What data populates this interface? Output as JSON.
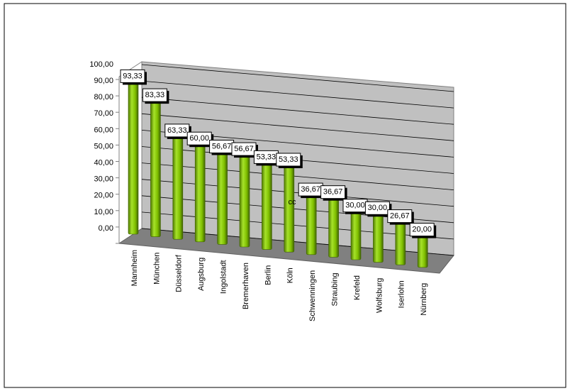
{
  "chart_data": {
    "type": "bar",
    "categories": [
      "Mannheim",
      "München",
      "Düsseldorf",
      "Augsburg",
      "Ingolstadt",
      "Bremerhaven",
      "Berlin",
      "Köln",
      "Schwenningen",
      "Straubing",
      "Krefeld",
      "Wolfsburg",
      "Iserlohn",
      "Nürnberg"
    ],
    "values": [
      93.33,
      83.33,
      63.33,
      60,
      56.67,
      56.67,
      53.33,
      53.33,
      36.67,
      36.67,
      30,
      30,
      26.67,
      20
    ],
    "value_labels": [
      "93,33",
      "83,33",
      "63,33",
      "60,00",
      "56,67",
      "56,67",
      "53,33",
      "53,33",
      "36,67",
      "36,67",
      "30,00",
      "30,00",
      "26,67",
      "20,00"
    ],
    "color": "#7fbf00",
    "ylim": [
      0,
      100
    ],
    "yticks": [
      {
        "value": 0,
        "label": "0,00"
      },
      {
        "value": 10,
        "label": "10,00"
      },
      {
        "value": 20,
        "label": "20,00"
      },
      {
        "value": 30,
        "label": "30,00"
      },
      {
        "value": 40,
        "label": "40,00"
      },
      {
        "value": 50,
        "label": "50,00"
      },
      {
        "value": 60,
        "label": "60,00"
      },
      {
        "value": 70,
        "label": "70,00"
      },
      {
        "value": 80,
        "label": "80,00"
      },
      {
        "value": 90,
        "label": "90,00"
      },
      {
        "value": 100,
        "label": "100,00"
      }
    ],
    "grid": true,
    "annotation": "cc"
  }
}
